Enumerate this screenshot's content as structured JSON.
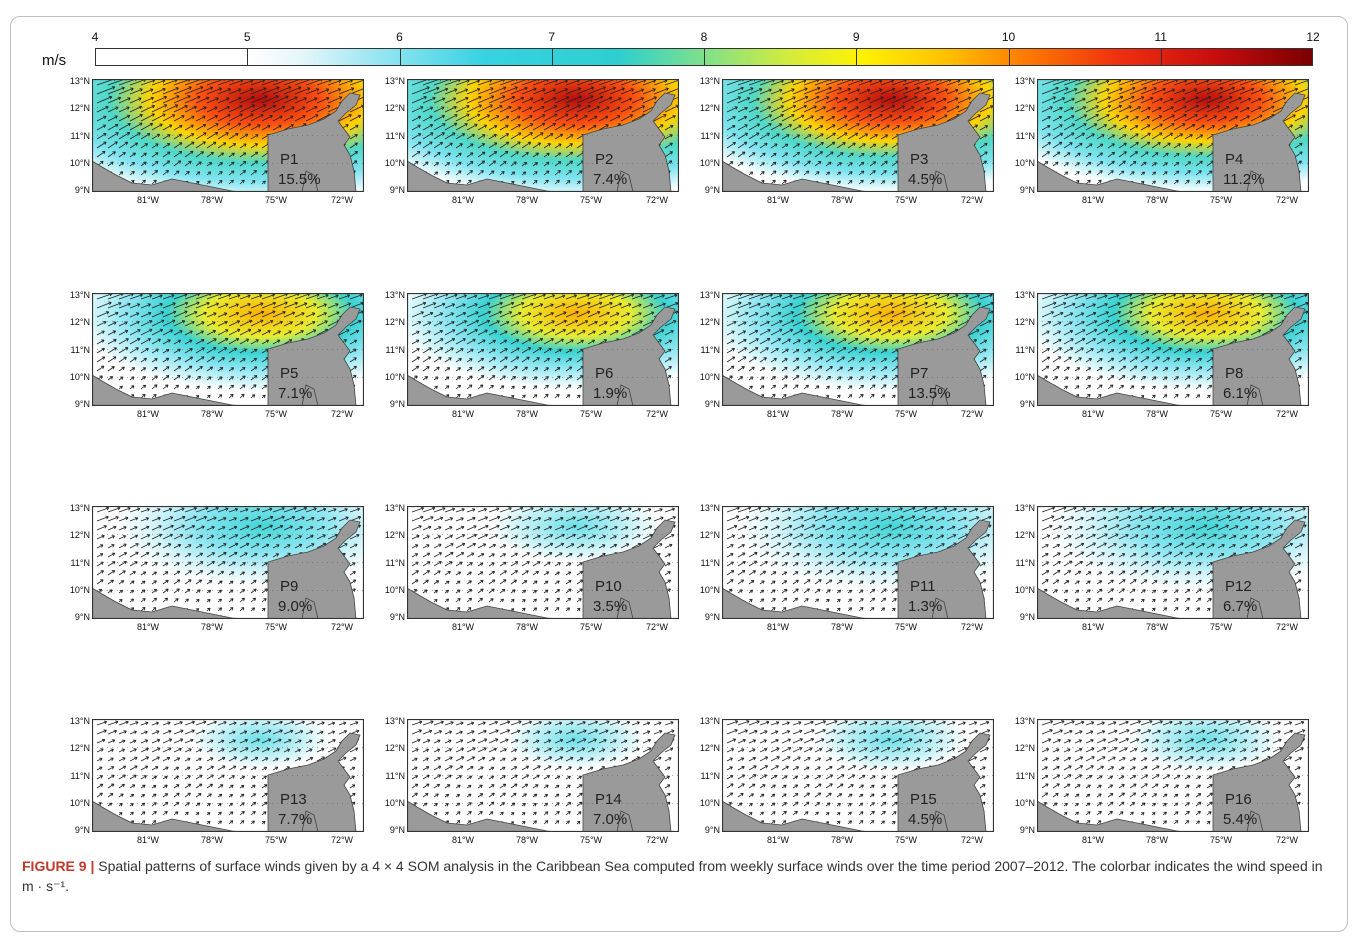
{
  "colorbar": {
    "unit": "m/s",
    "ticks": [
      "4",
      "5",
      "6",
      "7",
      "8",
      "9",
      "10",
      "11",
      "12"
    ],
    "min": 4,
    "max": 12
  },
  "axes": {
    "lat_labels": [
      "13°N",
      "12°N",
      "11°N",
      "10°N",
      "9°N"
    ],
    "lon_labels": [
      "81°W",
      "78°W",
      "75°W",
      "72°W"
    ]
  },
  "panels": [
    {
      "id": "P1",
      "percent": "15.5%",
      "intensity": 1.0
    },
    {
      "id": "P2",
      "percent": "7.4%",
      "intensity": 0.95
    },
    {
      "id": "P3",
      "percent": "4.5%",
      "intensity": 0.85
    },
    {
      "id": "P4",
      "percent": "11.2%",
      "intensity": 0.85
    },
    {
      "id": "P5",
      "percent": "7.1%",
      "intensity": 0.62
    },
    {
      "id": "P6",
      "percent": "1.9%",
      "intensity": 0.58
    },
    {
      "id": "P7",
      "percent": "13.5%",
      "intensity": 0.62
    },
    {
      "id": "P8",
      "percent": "6.1%",
      "intensity": 0.6
    },
    {
      "id": "P9",
      "percent": "9.0%",
      "intensity": 0.32
    },
    {
      "id": "P10",
      "percent": "3.5%",
      "intensity": 0.3
    },
    {
      "id": "P11",
      "percent": "1.3%",
      "intensity": 0.38
    },
    {
      "id": "P12",
      "percent": "6.7%",
      "intensity": 0.4
    },
    {
      "id": "P13",
      "percent": "7.7%",
      "intensity": 0.12
    },
    {
      "id": "P14",
      "percent": "7.0%",
      "intensity": 0.14
    },
    {
      "id": "P15",
      "percent": "4.5%",
      "intensity": 0.22
    },
    {
      "id": "P16",
      "percent": "5.4%",
      "intensity": 0.22
    }
  ],
  "caption": {
    "label": "FIGURE 9 |",
    "text": " Spatial patterns of surface winds given by a 4 × 4 SOM analysis in the Caribbean Sea computed from weekly surface winds over the time period 2007–2012. The colorbar indicates the wind speed in m · s⁻¹."
  }
}
